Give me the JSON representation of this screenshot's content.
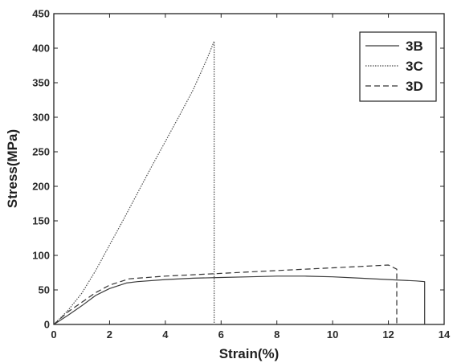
{
  "chart_data": {
    "type": "line",
    "title": "",
    "xlabel": "Strain(%)",
    "ylabel": "Stress(MPa)",
    "xlim": [
      0,
      14
    ],
    "ylim": [
      0,
      450
    ],
    "xticks": [
      0,
      2,
      4,
      6,
      8,
      10,
      12,
      14
    ],
    "yticks": [
      0,
      50,
      100,
      150,
      200,
      250,
      300,
      350,
      400,
      450
    ],
    "grid": false,
    "legend": "top-right",
    "series": [
      {
        "name": "3B",
        "style": "solid",
        "color": "#3a3a3a",
        "x": [
          0,
          0.5,
          1.0,
          1.5,
          2.0,
          2.6,
          3.0,
          4.0,
          5.0,
          6.0,
          7.0,
          8.0,
          9.0,
          10.0,
          11.0,
          12.0,
          13.0,
          13.3,
          13.3
        ],
        "y": [
          0,
          13,
          27,
          42,
          52,
          60,
          62,
          65,
          67,
          68,
          69,
          70,
          70,
          69,
          67,
          65,
          63,
          62,
          0
        ]
      },
      {
        "name": "3C",
        "style": "dotted",
        "color": "#4a4a4a",
        "x": [
          0,
          0.5,
          1.0,
          1.5,
          2.0,
          2.5,
          3.0,
          3.5,
          4.0,
          4.5,
          5.0,
          5.5,
          5.75,
          5.75
        ],
        "y": [
          0,
          20,
          45,
          78,
          115,
          152,
          190,
          228,
          265,
          302,
          340,
          385,
          410,
          0
        ]
      },
      {
        "name": "3D",
        "style": "dashed",
        "color": "#333333",
        "x": [
          0,
          0.5,
          1.0,
          1.5,
          2.0,
          2.7,
          3.0,
          4.0,
          5.0,
          6.0,
          7.0,
          8.0,
          9.0,
          10.0,
          11.0,
          12.0,
          12.3,
          12.3
        ],
        "y": [
          0,
          18,
          32,
          46,
          57,
          66,
          67,
          70,
          72,
          74,
          76,
          78,
          80,
          82,
          84,
          86,
          80,
          0
        ]
      }
    ]
  }
}
